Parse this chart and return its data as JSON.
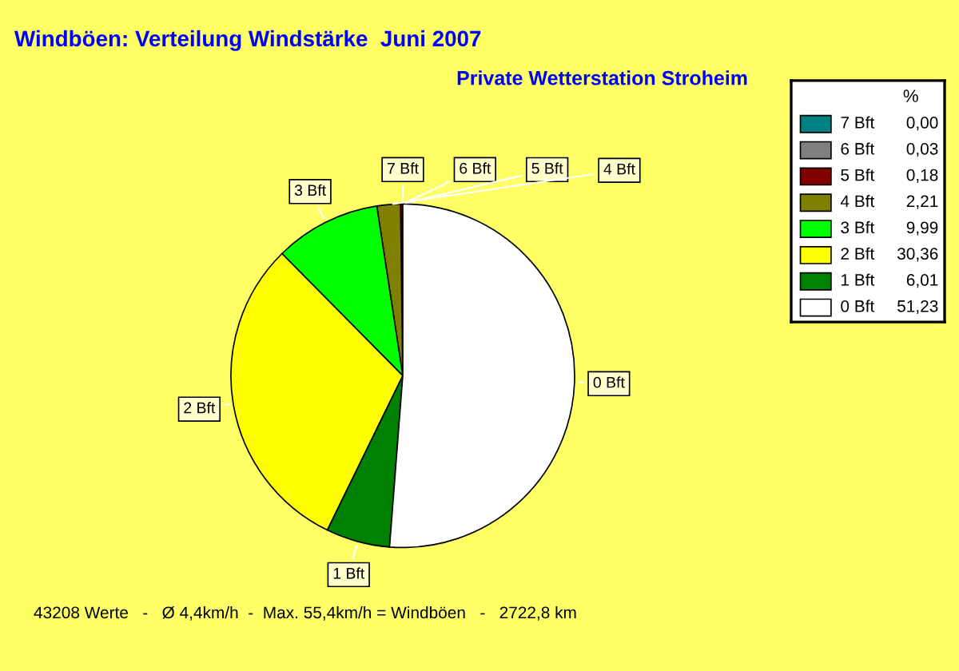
{
  "chart_data": {
    "type": "pie",
    "title": "Windböen: Verteilung Windstärke  Juni 2007",
    "subtitle": "Private Wetterstation Stroheim",
    "legend_title": "%",
    "categories": [
      "7 Bft",
      "6 Bft",
      "5 Bft",
      "4 Bft",
      "3 Bft",
      "2 Bft",
      "1 Bft",
      "0 Bft"
    ],
    "values": [
      0.0,
      0.03,
      0.18,
      2.21,
      9.99,
      30.36,
      6.01,
      51.23
    ],
    "value_labels": [
      "0,00",
      "0,03",
      "0,18",
      "2,21",
      "9,99",
      "30,36",
      "6,01",
      "51,23"
    ],
    "colors": [
      "#008080",
      "#808080",
      "#800000",
      "#808000",
      "#00ff00",
      "#ffff00",
      "#008000",
      "#ffffff"
    ],
    "legend": "right",
    "annotations": [
      "43208 Werte   -   Ø 4,4km/h  -  Max. 55,4km/h = Windböen   -   2722,8 km"
    ]
  }
}
